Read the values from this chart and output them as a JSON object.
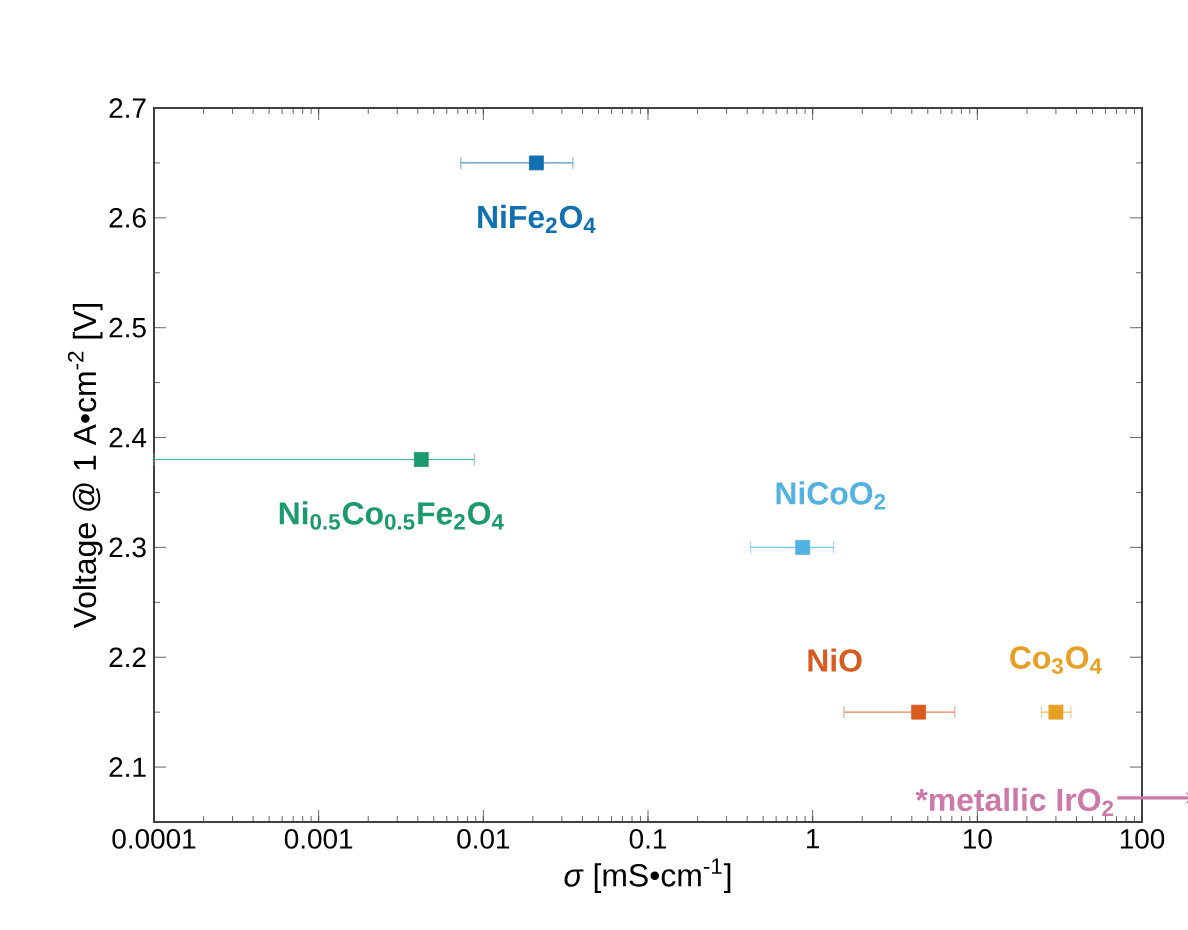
{
  "chart_data": {
    "type": "scatter",
    "xlabel": "*σ* [mS•cm$^{-1}$]",
    "ylabel": "Voltage @ 1 A•cm$^{-2}$  [V]",
    "log": "x",
    "xlim": [
      0.0001,
      100
    ],
    "ylim": [
      2.05,
      2.7
    ],
    "xticks": [
      0.0001,
      0.001,
      0.01,
      0.1,
      1,
      10,
      100
    ],
    "yticks": [
      2.1,
      2.2,
      2.3,
      2.4,
      2.5,
      2.6,
      2.7
    ],
    "grid": false,
    "marker": "square",
    "series": [
      {
        "name": "NiFe$_{2}$O$_{4}$",
        "color": "#1170b0",
        "x": [
          0.021
        ],
        "values": [
          2.65
        ],
        "xerrors": [
          [
            0.0073,
            0.035
          ]
        ]
      },
      {
        "name": "Ni$_{0.5}$Co$_{0.5}$Fe$_{2}$O$_{4}$",
        "color": "#1b9a6e",
        "x": [
          0.0042
        ],
        "values": [
          2.38
        ],
        "xerrors": [
          [
            0.0001,
            0.0088
          ]
        ]
      },
      {
        "name": "NiCoO$_{2}$",
        "color": "#52b2e2",
        "x": [
          0.87
        ],
        "values": [
          2.3
        ],
        "xerrors": [
          [
            0.42,
            1.34
          ]
        ]
      },
      {
        "name": "NiO",
        "color": "#d85b20",
        "x": [
          4.4
        ],
        "values": [
          2.15
        ],
        "xerrors": [
          [
            1.55,
            7.3
          ]
        ]
      },
      {
        "name": "Co$_{3}$O$_{4}$",
        "color": "#e7a024",
        "x": [
          30
        ],
        "values": [
          2.15
        ],
        "xerrors": [
          [
            24.5,
            37
          ]
        ]
      }
    ],
    "annotations": [
      "*metallic IrO$_{2}$"
    ]
  }
}
